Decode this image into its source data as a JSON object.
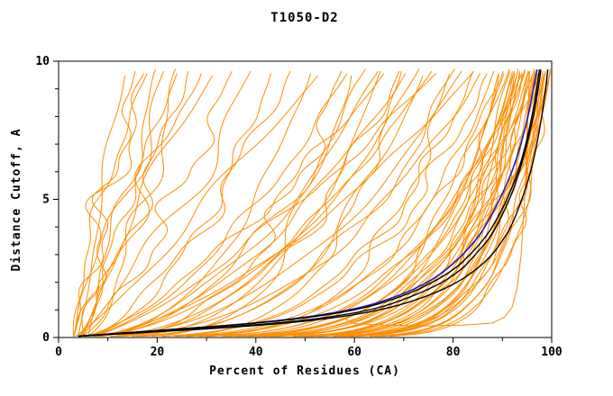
{
  "figure": {
    "background": "#ffffff"
  },
  "chart_data": {
    "type": "line",
    "title": "T1050-D2",
    "xlabel": "Percent of Residues (CA)",
    "ylabel": "Distance Cutoff, A",
    "xlim": [
      0,
      100
    ],
    "ylim": [
      0,
      10
    ],
    "x_ticks": [
      0,
      20,
      40,
      60,
      80,
      100
    ],
    "y_ticks": [
      0,
      5,
      10
    ],
    "x_minor_step": 10,
    "y_minor_step": 1,
    "grid": false,
    "legend": "none",
    "colors": {
      "ensemble": "#ff8d00",
      "highlight": "#1a1abf",
      "reference": "#000000",
      "axis": "#000000"
    },
    "ensemble_curves": [
      [
        4,
        14,
        1.1
      ],
      [
        3,
        16,
        0.9
      ],
      [
        5,
        18,
        1.3
      ],
      [
        4,
        20,
        0.8
      ],
      [
        3,
        22,
        1.0
      ],
      [
        6,
        25,
        1.2
      ],
      [
        4,
        27,
        0.85
      ],
      [
        3,
        30,
        1.0
      ],
      [
        5,
        33,
        1.25
      ],
      [
        4,
        36,
        0.7
      ],
      [
        3,
        19,
        1.5
      ],
      [
        5,
        24,
        0.6
      ],
      [
        4,
        40,
        0.8
      ],
      [
        3,
        44,
        0.5
      ],
      [
        5,
        48,
        0.65
      ],
      [
        4,
        52,
        0.42
      ],
      [
        3,
        55,
        0.9
      ],
      [
        6,
        58,
        0.36
      ],
      [
        4,
        60,
        0.6
      ],
      [
        3,
        63,
        0.45
      ],
      [
        5,
        66,
        0.33
      ],
      [
        4,
        68,
        0.7
      ],
      [
        3,
        70,
        0.38
      ],
      [
        5,
        72,
        0.55
      ],
      [
        4,
        75,
        0.31
      ],
      [
        3,
        77,
        0.5
      ],
      [
        6,
        79,
        0.75
      ],
      [
        4,
        81,
        0.34
      ],
      [
        3,
        83,
        0.43
      ],
      [
        5,
        85,
        0.29
      ],
      [
        4,
        86,
        0.6
      ],
      [
        3,
        87,
        0.4
      ],
      [
        5,
        60,
        0.25
      ],
      [
        4,
        70,
        0.22
      ],
      [
        3,
        80,
        0.2
      ],
      [
        5,
        74,
        0.45
      ],
      [
        4,
        66,
        0.52
      ],
      [
        4,
        88,
        0.29
      ],
      [
        3,
        89,
        0.24
      ],
      [
        5,
        90,
        0.2
      ],
      [
        4,
        90,
        0.15
      ],
      [
        3,
        91,
        0.26
      ],
      [
        5,
        91,
        0.18
      ],
      [
        4,
        92,
        0.22
      ],
      [
        3,
        92,
        0.14
      ],
      [
        5,
        93,
        0.19
      ],
      [
        4,
        93,
        0.17
      ],
      [
        3,
        93,
        0.12
      ],
      [
        5,
        94,
        0.23
      ],
      [
        4,
        94,
        0.15
      ],
      [
        3,
        94,
        0.11
      ],
      [
        5,
        95,
        0.17
      ],
      [
        4,
        95,
        0.13
      ],
      [
        3,
        95,
        0.25
      ],
      [
        5,
        96,
        0.16
      ],
      [
        4,
        96,
        0.12
      ],
      [
        3,
        96,
        0.2
      ],
      [
        5,
        97,
        0.14
      ],
      [
        4,
        97,
        0.1
      ],
      [
        3,
        97,
        0.18
      ],
      [
        5,
        98,
        0.12
      ],
      [
        4,
        98,
        0.16
      ],
      [
        3,
        98,
        0.095
      ],
      [
        5,
        99,
        0.13
      ],
      [
        4,
        99,
        0.11
      ],
      [
        3,
        99,
        0.085
      ],
      [
        5,
        100,
        0.11
      ],
      [
        4,
        100,
        0.1
      ],
      [
        3,
        100,
        0.08
      ],
      [
        4,
        99.5,
        0.075
      ],
      [
        5,
        98.5,
        0.083
      ],
      [
        3,
        97.5,
        0.09
      ],
      [
        4,
        96.5,
        0.095
      ],
      [
        5,
        95.5,
        0.105
      ],
      [
        3,
        94.5,
        0.12
      ],
      [
        4,
        93.5,
        0.13
      ],
      [
        5,
        92.5,
        0.145
      ]
    ],
    "outlier_curve": [
      [
        57.5,
        0.72
      ],
      [
        60,
        0.5
      ],
      [
        66,
        0.45
      ],
      [
        74,
        0.42
      ],
      [
        82,
        0.45
      ],
      [
        88,
        0.52
      ],
      [
        90.5,
        0.75
      ],
      [
        92,
        1.1
      ],
      [
        93,
        1.8
      ],
      [
        93.8,
        3.0
      ],
      [
        94.5,
        5.0
      ],
      [
        95,
        7.0
      ],
      [
        95.5,
        9.65
      ]
    ],
    "highlight_curve": {
      "name": "highlighted-model",
      "points": [
        [
          0.05,
          4
        ],
        [
          0.3,
          25
        ],
        [
          0.6,
          45
        ],
        [
          1.0,
          60
        ],
        [
          1.5,
          69
        ],
        [
          2.0,
          75
        ],
        [
          2.5,
          79
        ],
        [
          3.0,
          82
        ],
        [
          3.5,
          84.5
        ],
        [
          4.0,
          86.5
        ],
        [
          5.0,
          89.5
        ],
        [
          6.0,
          92
        ],
        [
          7.0,
          93.8
        ],
        [
          8.0,
          95.2
        ],
        [
          9.0,
          96.3
        ],
        [
          9.7,
          97
        ]
      ]
    },
    "reference_curves": [
      {
        "name": "reference-1",
        "points": [
          [
            0.05,
            4
          ],
          [
            0.3,
            28
          ],
          [
            0.6,
            50
          ],
          [
            1.0,
            64
          ],
          [
            1.5,
            72
          ],
          [
            2.0,
            78
          ],
          [
            2.5,
            82
          ],
          [
            3.0,
            84.5
          ],
          [
            3.5,
            87
          ],
          [
            4.0,
            88.8
          ],
          [
            5.0,
            91.5
          ],
          [
            6.0,
            93.5
          ],
          [
            7.0,
            95
          ],
          [
            8.0,
            96.3
          ],
          [
            9.0,
            97.3
          ],
          [
            9.7,
            97.8
          ]
        ]
      },
      {
        "name": "reference-2",
        "points": [
          [
            0.05,
            4
          ],
          [
            0.3,
            24
          ],
          [
            0.6,
            46
          ],
          [
            1.0,
            61
          ],
          [
            1.5,
            70
          ],
          [
            2.0,
            76
          ],
          [
            2.5,
            80.5
          ],
          [
            3.0,
            83.5
          ],
          [
            3.5,
            86
          ],
          [
            4.0,
            88
          ],
          [
            5.0,
            91
          ],
          [
            6.0,
            93.2
          ],
          [
            7.0,
            94.8
          ],
          [
            8.0,
            96
          ],
          [
            9.0,
            97
          ],
          [
            9.7,
            97.5
          ]
        ]
      },
      {
        "name": "reference-3",
        "points": [
          [
            0.05,
            4
          ],
          [
            0.3,
            30
          ],
          [
            0.6,
            52
          ],
          [
            1.0,
            66
          ],
          [
            1.5,
            75
          ],
          [
            2.0,
            81
          ],
          [
            2.5,
            85
          ],
          [
            3.0,
            88
          ],
          [
            3.5,
            90
          ],
          [
            4.0,
            91.8
          ],
          [
            5.0,
            94
          ],
          [
            6.0,
            95.8
          ],
          [
            7.0,
            97
          ],
          [
            8.0,
            98
          ],
          [
            9.0,
            98.8
          ],
          [
            9.7,
            99.2
          ]
        ]
      }
    ]
  }
}
